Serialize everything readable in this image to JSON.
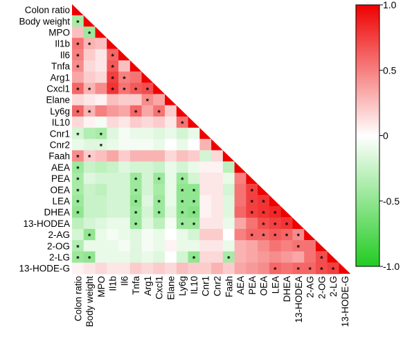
{
  "chart_data": {
    "type": "heatmap",
    "subtype": "lower-triangular correlation matrix",
    "variables": [
      "Colon ratio",
      "Body weight",
      "MPO",
      "Il1b",
      "Il6",
      "Tnfa",
      "Arg1",
      "Cxcl1",
      "Elane",
      "Ly6g",
      "IL10",
      "Cnr1",
      "Cnr2",
      "Faah",
      "AEA",
      "PEA",
      "OEA",
      "LEA",
      "DHEA",
      "13-HODEA",
      "2-AG",
      "2-OG",
      "2-LG",
      "13-HODE-G"
    ],
    "diagonal_value": 1.0,
    "color_scale": {
      "min": -1.0,
      "max": 1.0,
      "ticks": [
        1.0,
        0.5,
        0,
        -0.5,
        -1.0
      ],
      "tick_labels": [
        "1.0",
        "0.5",
        "0",
        "-0.5",
        "-1.0"
      ],
      "colors": {
        "negative": "#22cc22",
        "zero": "#ffffff",
        "positive": "#ee0000"
      }
    },
    "legend_placement": "right",
    "significance_marker": "*",
    "correlations": [
      [],
      [
        -0.4
      ],
      [
        0.25,
        -0.45
      ],
      [
        0.55,
        0.3,
        0.25
      ],
      [
        0.5,
        0.2,
        0.1,
        0.6
      ],
      [
        0.45,
        0.15,
        0.1,
        0.65,
        0.25
      ],
      [
        0.35,
        0.2,
        0.15,
        0.75,
        0.5,
        0.55
      ],
      [
        0.6,
        0.3,
        0.45,
        0.8,
        0.55,
        0.65,
        0.7
      ],
      [
        0.15,
        0.1,
        0.05,
        0.25,
        0.2,
        0.2,
        0.45,
        0.35
      ],
      [
        0.6,
        0.3,
        0.5,
        0.4,
        0.35,
        0.6,
        0.35,
        0.55,
        0.2
      ],
      [
        0.15,
        0.05,
        -0.05,
        0.15,
        0.1,
        0.2,
        0.15,
        0.2,
        0.1,
        0.55
      ],
      [
        -0.2,
        -0.35,
        -0.4,
        -0.15,
        -0.05,
        -0.1,
        -0.1,
        -0.15,
        -0.1,
        -0.2,
        -0.1
      ],
      [
        -0.1,
        -0.15,
        -0.15,
        -0.1,
        -0.05,
        -0.05,
        -0.05,
        -0.1,
        0.0,
        -0.1,
        0.0,
        0.3
      ],
      [
        0.45,
        0.2,
        0.25,
        0.35,
        0.2,
        0.3,
        0.3,
        0.3,
        0.15,
        0.25,
        0.2,
        -0.2,
        0.15
      ],
      [
        -0.45,
        -0.25,
        -0.3,
        -0.25,
        -0.15,
        -0.2,
        -0.2,
        -0.25,
        -0.1,
        -0.2,
        -0.1,
        0.05,
        0.05,
        -0.3
      ],
      [
        -0.4,
        -0.15,
        -0.2,
        -0.2,
        -0.2,
        -0.45,
        -0.2,
        -0.45,
        -0.1,
        -0.45,
        -0.2,
        0.1,
        0.1,
        -0.1,
        0.5
      ],
      [
        -0.4,
        -0.25,
        -0.3,
        -0.2,
        -0.2,
        -0.45,
        -0.2,
        -0.4,
        -0.1,
        -0.5,
        -0.5,
        0.1,
        0.1,
        -0.2,
        0.55,
        0.75
      ],
      [
        -0.45,
        -0.25,
        -0.25,
        -0.2,
        -0.2,
        -0.5,
        -0.15,
        -0.45,
        -0.1,
        -0.5,
        -0.5,
        0.05,
        0.1,
        -0.15,
        0.55,
        0.75,
        0.8
      ],
      [
        -0.5,
        -0.25,
        -0.25,
        -0.2,
        -0.2,
        -0.45,
        -0.2,
        -0.45,
        -0.15,
        -0.5,
        -0.55,
        0.05,
        0.1,
        -0.15,
        0.6,
        0.75,
        0.8,
        0.85
      ],
      [
        -0.3,
        -0.2,
        -0.15,
        -0.1,
        -0.1,
        -0.45,
        -0.15,
        -0.3,
        -0.05,
        -0.45,
        -0.45,
        0.1,
        0.1,
        -0.1,
        0.35,
        0.55,
        0.7,
        0.75,
        0.8
      ],
      [
        -0.2,
        -0.5,
        -0.1,
        -0.05,
        -0.1,
        -0.15,
        -0.05,
        -0.1,
        0.0,
        -0.1,
        -0.2,
        0.2,
        0.2,
        0.0,
        0.5,
        0.6,
        0.6,
        0.65,
        0.6,
        0.45
      ],
      [
        -0.35,
        -0.1,
        -0.1,
        -0.1,
        -0.05,
        -0.15,
        -0.05,
        -0.1,
        0.05,
        -0.1,
        -0.1,
        0.1,
        0.1,
        -0.1,
        0.3,
        0.35,
        0.45,
        0.55,
        0.5,
        0.55,
        0.55
      ],
      [
        -0.45,
        -0.5,
        -0.1,
        -0.1,
        -0.1,
        -0.15,
        -0.1,
        -0.15,
        0.0,
        -0.2,
        -0.5,
        0.15,
        0.15,
        -0.4,
        0.3,
        0.35,
        0.4,
        0.45,
        0.4,
        0.35,
        0.55,
        0.7
      ],
      [
        0.05,
        0.1,
        0.15,
        0.1,
        0.1,
        0.2,
        0.15,
        0.2,
        0.15,
        0.25,
        0.2,
        0.2,
        0.3,
        0.2,
        0.35,
        0.4,
        0.45,
        0.6,
        0.55,
        0.6,
        0.6,
        0.7,
        0.75
      ]
    ],
    "significant_cells": [
      [
        1,
        0
      ],
      [
        2,
        1
      ],
      [
        3,
        0
      ],
      [
        3,
        1
      ],
      [
        4,
        0
      ],
      [
        4,
        3
      ],
      [
        5,
        0
      ],
      [
        5,
        3
      ],
      [
        6,
        3
      ],
      [
        6,
        4
      ],
      [
        7,
        0
      ],
      [
        7,
        1
      ],
      [
        7,
        3
      ],
      [
        7,
        4
      ],
      [
        7,
        5
      ],
      [
        7,
        6
      ],
      [
        8,
        6
      ],
      [
        9,
        0
      ],
      [
        9,
        1
      ],
      [
        9,
        5
      ],
      [
        9,
        7
      ],
      [
        10,
        9
      ],
      [
        11,
        0
      ],
      [
        11,
        2
      ],
      [
        12,
        2
      ],
      [
        13,
        0
      ],
      [
        13,
        1
      ],
      [
        14,
        0
      ],
      [
        15,
        0
      ],
      [
        15,
        5
      ],
      [
        15,
        7
      ],
      [
        15,
        9
      ],
      [
        16,
        0
      ],
      [
        16,
        5
      ],
      [
        16,
        9
      ],
      [
        16,
        10
      ],
      [
        16,
        15
      ],
      [
        17,
        0
      ],
      [
        17,
        5
      ],
      [
        17,
        7
      ],
      [
        17,
        9
      ],
      [
        17,
        10
      ],
      [
        17,
        15
      ],
      [
        17,
        16
      ],
      [
        18,
        0
      ],
      [
        18,
        5
      ],
      [
        18,
        7
      ],
      [
        18,
        9
      ],
      [
        18,
        10
      ],
      [
        18,
        15
      ],
      [
        18,
        16
      ],
      [
        18,
        17
      ],
      [
        19,
        5
      ],
      [
        19,
        9
      ],
      [
        19,
        10
      ],
      [
        19,
        16
      ],
      [
        19,
        17
      ],
      [
        19,
        18
      ],
      [
        20,
        1
      ],
      [
        20,
        15
      ],
      [
        20,
        16
      ],
      [
        20,
        17
      ],
      [
        20,
        18
      ],
      [
        20,
        19
      ],
      [
        21,
        0
      ],
      [
        21,
        19
      ],
      [
        22,
        0
      ],
      [
        22,
        1
      ],
      [
        22,
        10
      ],
      [
        22,
        13
      ],
      [
        22,
        21
      ],
      [
        23,
        17
      ],
      [
        23,
        19
      ],
      [
        23,
        20
      ],
      [
        23,
        21
      ],
      [
        23,
        22
      ]
    ]
  }
}
